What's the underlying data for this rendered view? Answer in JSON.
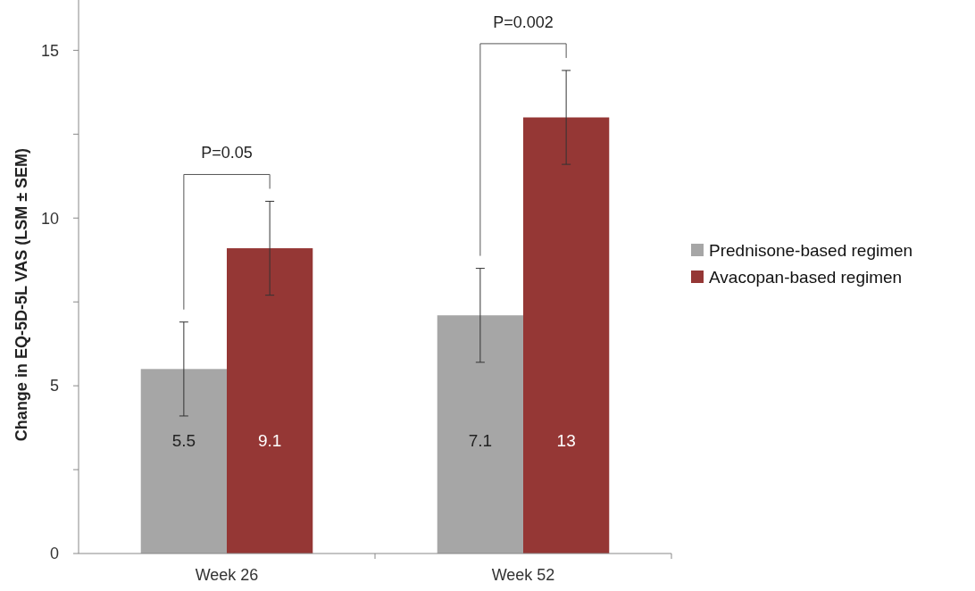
{
  "chart_data": {
    "type": "bar",
    "ylabel": "Change in EQ-5D-5L VAS (LSM ± SEM)",
    "categories": [
      "Week 26",
      "Week 52"
    ],
    "series": [
      {
        "name": "Prednisone-based regimen",
        "color": "#a6a6a6",
        "values": [
          5.5,
          7.1
        ],
        "errors": [
          1.4,
          1.4
        ]
      },
      {
        "name": "Avacopan-based regimen",
        "color": "#953735",
        "values": [
          9.1,
          13
        ],
        "errors": [
          1.4,
          1.4
        ]
      }
    ],
    "ylim": [
      0,
      16.5
    ],
    "yticks": [
      0,
      {
        "value": 2.5,
        "label": null
      },
      5,
      {
        "value": 7.5,
        "label": null
      },
      10,
      {
        "value": 12.5,
        "label": null
      },
      15
    ],
    "data_labels": true,
    "legend": "right",
    "grid": false,
    "annotations": [
      "P=0.05",
      "P=0.002"
    ]
  }
}
